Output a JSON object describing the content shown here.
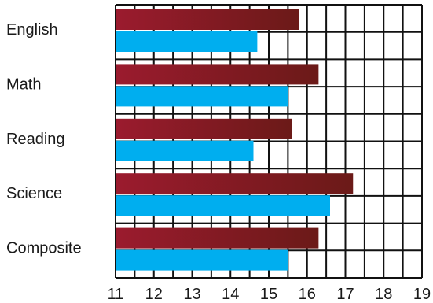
{
  "chart_data": {
    "type": "bar",
    "orientation": "horizontal",
    "title": "",
    "xlabel": "",
    "ylabel": "",
    "categories": [
      "English",
      "Math",
      "Reading",
      "Science",
      "Composite"
    ],
    "series": [
      {
        "color": "#9b1b2e",
        "gradient_end": "#6b1a18",
        "values": [
          15.8,
          16.3,
          15.6,
          17.2,
          16.3
        ]
      },
      {
        "color": "#00aeef",
        "values": [
          14.7,
          15.5,
          14.6,
          16.6,
          15.5
        ]
      }
    ],
    "xlim": [
      11,
      19
    ],
    "xticks": [
      "11",
      "12",
      "13",
      "14",
      "15",
      "16",
      "17",
      "18",
      "19"
    ],
    "grid": true,
    "legend": "none"
  }
}
